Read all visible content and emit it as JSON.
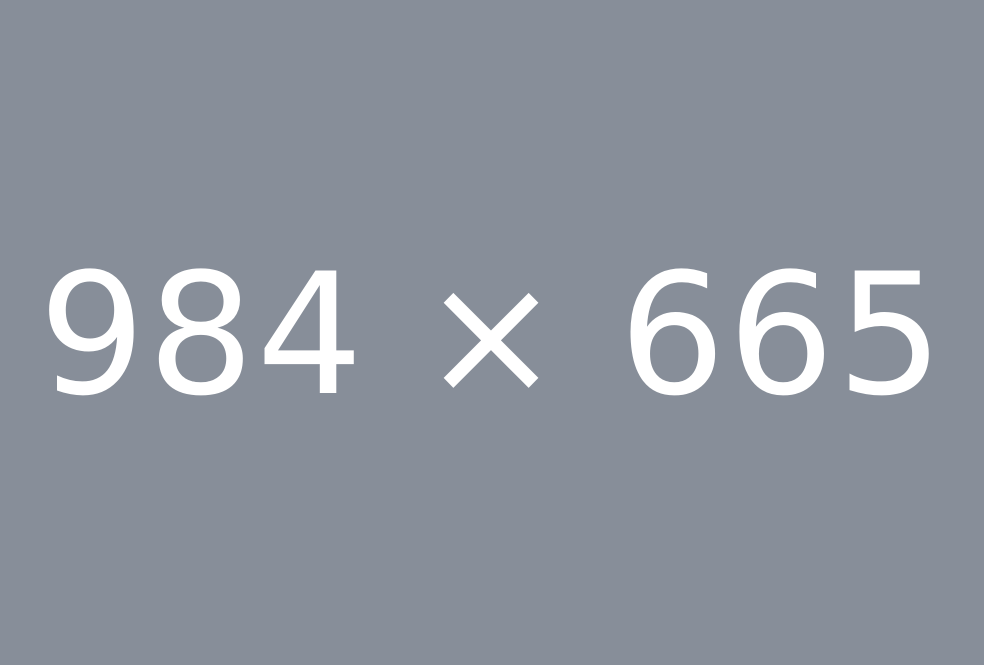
{
  "placeholder": {
    "label": "984 × 665",
    "background_color": "#878e99",
    "text_color": "#ffffff"
  }
}
